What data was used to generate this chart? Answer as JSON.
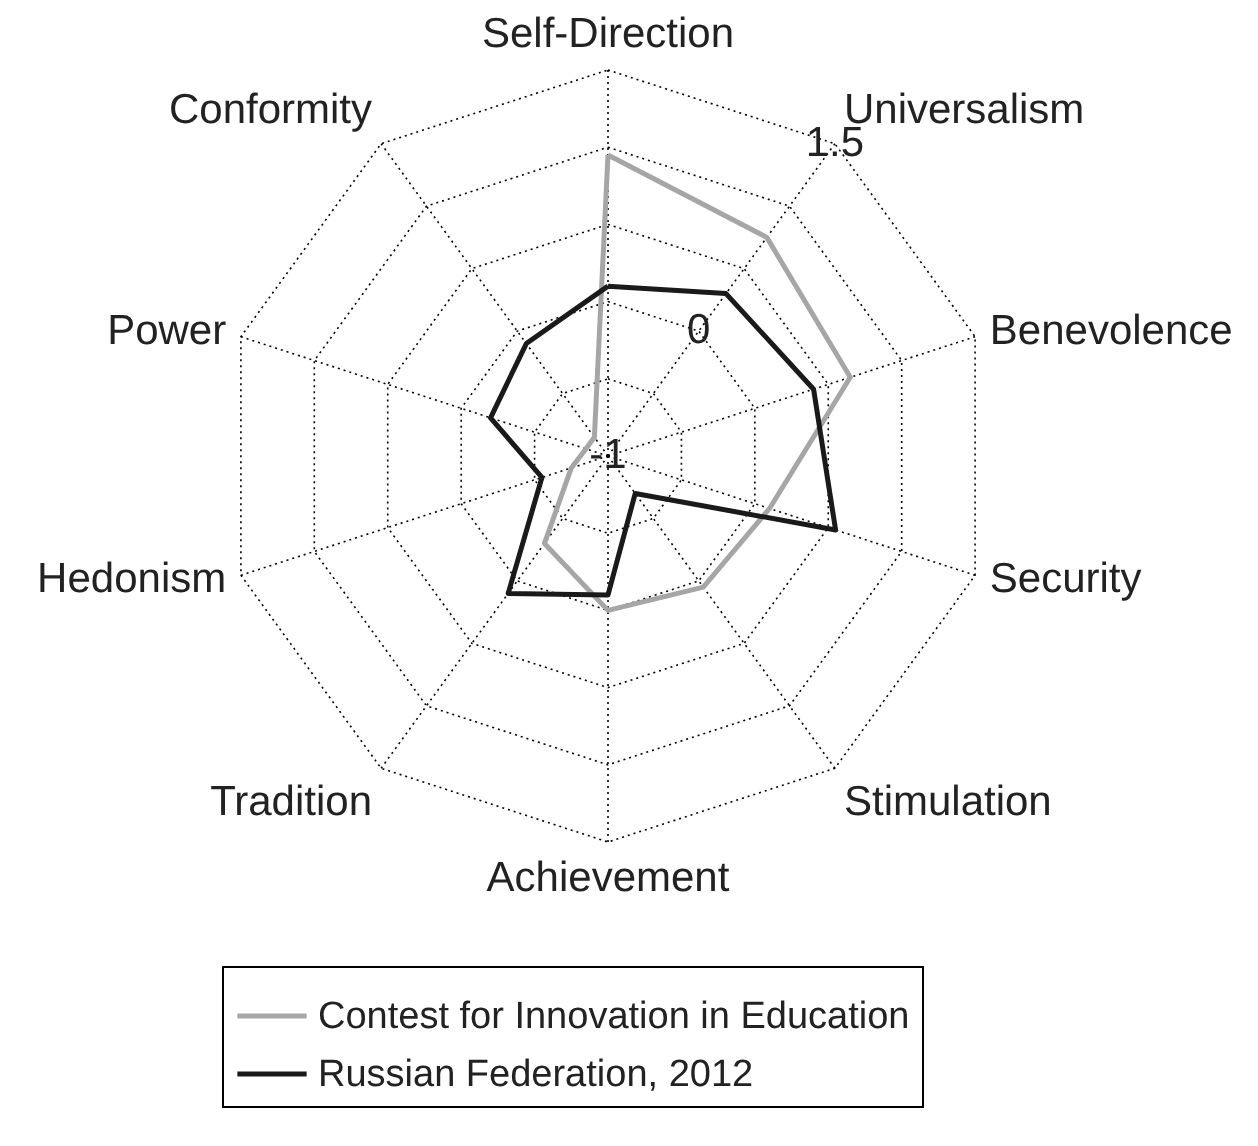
{
  "chart_data": {
    "type": "radar",
    "categories": [
      "Self-Direction",
      "Universalism",
      "Benevolence",
      "Security",
      "Stimulation",
      "Achievement",
      "Tradition",
      "Hedonism",
      "Power",
      "Conformity"
    ],
    "series": [
      {
        "name": "Contest for Innovation in Education",
        "color": "#a6a6a6",
        "values": [
          0.95,
          0.75,
          0.65,
          0.1,
          0.05,
          0.0,
          -0.3,
          -0.75,
          -0.85,
          -0.85
        ]
      },
      {
        "name": "Russian Federation, 2012",
        "color": "#1a1a1a",
        "values": [
          0.1,
          0.3,
          0.4,
          0.55,
          -0.7,
          -0.1,
          0.1,
          -0.55,
          -0.2,
          -0.1
        ]
      }
    ],
    "ylim": [
      -1,
      1.5
    ],
    "yticks": [
      -1,
      0,
      1.5
    ],
    "grid": true,
    "legend": "bottom"
  }
}
